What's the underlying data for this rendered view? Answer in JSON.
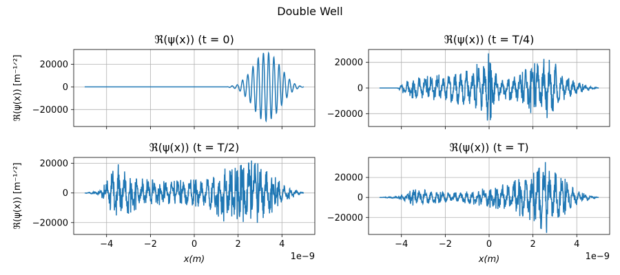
{
  "figure": {
    "suptitle": "Double Well",
    "x_offset_label": "1e−9"
  },
  "colors": {
    "line": "#1f77b4",
    "grid": "#b0b0b0",
    "axes": "#000000",
    "background": "#ffffff"
  },
  "chart_data": [
    {
      "type": "line",
      "title": "ℜ(ψ(x)) (t = 0)",
      "xlabel": "",
      "ylabel": "ℜ(ψ(x)) [m⁻¹ᐟ²]",
      "xlim": [
        -5.5,
        5.5
      ],
      "ylim": [
        -35000,
        33000
      ],
      "yticks": [
        -20000,
        0,
        20000
      ],
      "xticks": [
        -4,
        -2,
        0,
        2,
        4
      ],
      "grid": true,
      "series": [
        {
          "x": [
            -5,
            -3,
            -1,
            1,
            1.5,
            2.0,
            2.5,
            2.8,
            3.0,
            3.2,
            3.4,
            3.6,
            3.8,
            4.0,
            4.2,
            4.4,
            4.6,
            4.8,
            5.0
          ],
          "y": [
            0,
            0,
            0,
            0,
            0,
            2000,
            12000,
            22000,
            28000,
            30500,
            30000,
            27000,
            22000,
            16000,
            10000,
            5500,
            2500,
            900,
            0
          ]
        }
      ]
    },
    {
      "type": "line",
      "title": "ℜ(ψ(x)) (t = T/4)",
      "xlabel": "",
      "ylabel": "",
      "xlim": [
        -5.5,
        5.5
      ],
      "ylim": [
        -30000,
        30000
      ],
      "yticks": [
        -20000,
        0,
        20000
      ],
      "xticks": [
        -4,
        -2,
        0,
        2,
        4
      ],
      "grid": true,
      "series": [
        {
          "x": [
            -5,
            -4.2,
            -4.0,
            -3.8,
            -3.5,
            -3.0,
            -2.5,
            -2.0,
            -1.5,
            -1.0,
            -0.5,
            -0.2,
            0,
            0.3,
            0.6,
            1.0,
            1.5,
            1.8,
            2.0,
            2.3,
            2.6,
            2.8,
            3.0,
            3.3,
            3.6,
            4.0,
            4.3,
            4.6,
            5.0
          ],
          "y": [
            0,
            0,
            3000,
            6000,
            8000,
            9000,
            10000,
            11000,
            14000,
            17000,
            19000,
            22000,
            28000,
            12000,
            8000,
            10000,
            12000,
            20000,
            19000,
            20000,
            24000,
            28000,
            20000,
            12000,
            8000,
            5000,
            3000,
            1500,
            0
          ]
        }
      ]
    },
    {
      "type": "line",
      "title": "ℜ(ψ(x)) (t = T/2)",
      "xlabel": "x(m)",
      "ylabel": "ℜ(ψ(x)) [m⁻¹ᐟ²]",
      "xlim": [
        -5.5,
        5.5
      ],
      "ylim": [
        -28000,
        24000
      ],
      "yticks": [
        -20000,
        0,
        20000
      ],
      "xticks": [
        -4,
        -2,
        0,
        2,
        4
      ],
      "grid": true,
      "series": [
        {
          "x": [
            -5,
            -4.3,
            -4.0,
            -3.8,
            -3.6,
            -3.4,
            -3.0,
            -2.5,
            -2.0,
            -1.5,
            -1.0,
            -0.5,
            0,
            0.5,
            1.0,
            1.3,
            1.6,
            2.0,
            2.3,
            2.6,
            2.9,
            3.2,
            3.5,
            3.8,
            4.2,
            4.6,
            5.0
          ],
          "y": [
            0,
            1500,
            8000,
            16000,
            22000,
            18000,
            14000,
            10000,
            9000,
            8000,
            8000,
            9000,
            9000,
            10000,
            14000,
            20000,
            15000,
            18000,
            20000,
            22000,
            20000,
            18000,
            14000,
            9000,
            5000,
            2500,
            0
          ]
        }
      ]
    },
    {
      "type": "line",
      "title": "ℜ(ψ(x)) (t = T)",
      "xlabel": "x(m)",
      "ylabel": "",
      "xlim": [
        -5.5,
        5.5
      ],
      "ylim": [
        -37000,
        40000
      ],
      "yticks": [
        -20000,
        0,
        20000
      ],
      "xticks": [
        -4,
        -2,
        0,
        2,
        4
      ],
      "grid": true,
      "series": [
        {
          "x": [
            -5,
            -4.2,
            -3.8,
            -3.5,
            -3.0,
            -2.5,
            -2.0,
            -1.5,
            -1.0,
            -0.5,
            0,
            0.5,
            1.0,
            1.3,
            1.6,
            2.0,
            2.3,
            2.6,
            2.9,
            3.2,
            3.5,
            3.8,
            4.2,
            4.6,
            5.0
          ],
          "y": [
            0,
            1000,
            4000,
            8000,
            8000,
            6000,
            5000,
            5000,
            6000,
            8000,
            10000,
            12000,
            16000,
            18000,
            20000,
            24000,
            30000,
            36000,
            28000,
            24000,
            18000,
            10000,
            5000,
            2000,
            0
          ]
        }
      ]
    }
  ]
}
